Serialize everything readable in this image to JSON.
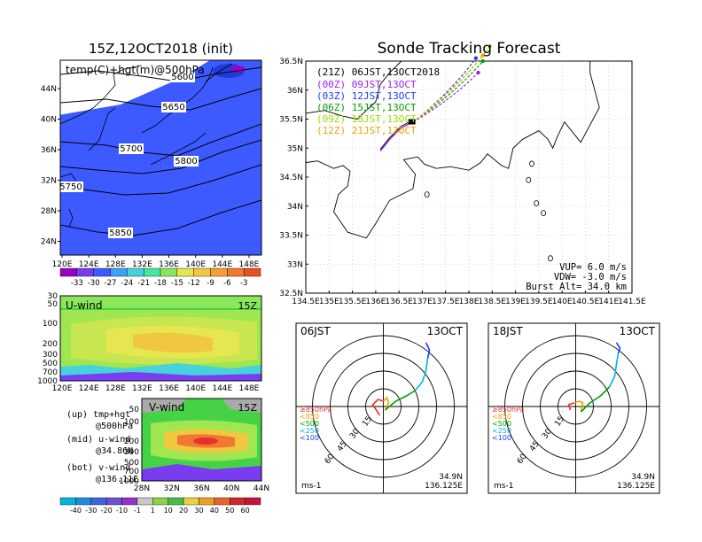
{
  "chart_data": [
    {
      "type": "heatmap",
      "title": "15Z,12OCT2018 (init)",
      "subtitle": "temp(C)+hgt(m)@500hPa",
      "x_ticks": [
        "120E",
        "124E",
        "128E",
        "132E",
        "136E",
        "140E",
        "144E",
        "148E"
      ],
      "y_ticks": [
        "44N",
        "40N",
        "36N",
        "32N",
        "28N",
        "24N"
      ],
      "contour_labels": [
        "5600",
        "5650",
        "5700",
        "5800",
        "5750",
        "5850"
      ],
      "colorbar": [
        "-33",
        "-30",
        "-27",
        "-24",
        "-21",
        "-18",
        "-15",
        "-12",
        "-9",
        "-6",
        "-3"
      ],
      "colors": [
        "#9a00c8",
        "#7a3cf0",
        "#3c5aff",
        "#3ca0ff",
        "#46d2dc",
        "#46e6a0",
        "#8ce65a",
        "#e6e650",
        "#f0c840",
        "#f5a032",
        "#f07830",
        "#e85028"
      ]
    },
    {
      "type": "line",
      "title": "Sonde Tracking Forecast",
      "x_ticks": [
        "134.5E",
        "135E",
        "135.5E",
        "136E",
        "136.5E",
        "137E",
        "137.5E",
        "138E",
        "138.5E",
        "139E",
        "139.5E",
        "140E",
        "140.5E",
        "141E",
        "141.5E"
      ],
      "y_ticks": [
        "36.5N",
        "36N",
        "35.5N",
        "35N",
        "34.5N",
        "34N",
        "33.5N",
        "33N",
        "32.5N"
      ],
      "xlim": [
        134.5,
        141.5
      ],
      "ylim": [
        32.5,
        36.5
      ],
      "header": "(21Z)  06JST,13OCT2018",
      "series": [
        {
          "name": "(00Z)  09JST,13OCT",
          "color": "#a020f0",
          "end": [
            138.2,
            36.3
          ]
        },
        {
          "name": "(03Z)  12JST,13OCT",
          "color": "#1e3cff",
          "end": [
            138.15,
            36.55
          ]
        },
        {
          "name": "(06Z)  15JST,13OCT",
          "color": "#00a000",
          "end": [
            138.3,
            36.5
          ]
        },
        {
          "name": "(09Z)  18JST,13OCT",
          "color": "#a0dc00",
          "end": [
            138.45,
            36.75
          ]
        },
        {
          "name": "(12Z)  21JST,13OCT",
          "color": "#f0a000",
          "end": [
            138.3,
            36.6
          ]
        }
      ],
      "params": [
        "VUP=  6.0  m/s",
        "VDW= -3.0  m/s",
        "Burst Alt=  34.0  km"
      ]
    },
    {
      "type": "heatmap",
      "title": "U-wind",
      "time_label": "15Z",
      "y_ticks": [
        "30",
        "50",
        "100",
        "200",
        "300",
        "500",
        "700",
        "1000"
      ],
      "x_ticks": [
        "120E",
        "124E",
        "128E",
        "132E",
        "136E",
        "140E",
        "144E",
        "148E"
      ]
    },
    {
      "type": "heatmap",
      "title": "V-wind",
      "time_label": "15Z",
      "y_ticks": [
        "50",
        "100",
        "200",
        "300",
        "500",
        "700",
        "1000"
      ],
      "x_ticks": [
        "28N",
        "32N",
        "36N",
        "40N",
        "44N"
      ],
      "notes": [
        "(up)  tmp+hgt",
        "@500hPa",
        "(mid)  u-wind",
        "@34.86N",
        "(bot)  v-wind",
        "@136.11E"
      ],
      "colorbar": [
        "-40",
        "-30",
        "-20",
        "-10",
        "-1",
        "1",
        "10",
        "20",
        "30",
        "40",
        "50",
        "60"
      ]
    },
    {
      "type": "line",
      "title": "06JST",
      "date": "13OCT",
      "rings": [
        "15",
        "30",
        "45",
        "60"
      ],
      "unit": "ms-1",
      "location": [
        "34.9N",
        "136.125E"
      ],
      "legend": [
        "≥850hPa",
        "<850",
        "<500",
        "<250",
        "<100"
      ]
    },
    {
      "type": "line",
      "title": "18JST",
      "date": "13OCT",
      "rings": [
        "15",
        "30",
        "45",
        "60"
      ],
      "unit": "ms-1",
      "location": [
        "34.9N",
        "136.125E"
      ],
      "legend": [
        "≥850hPa",
        "<850",
        "<500",
        "<250",
        "<100"
      ]
    }
  ]
}
